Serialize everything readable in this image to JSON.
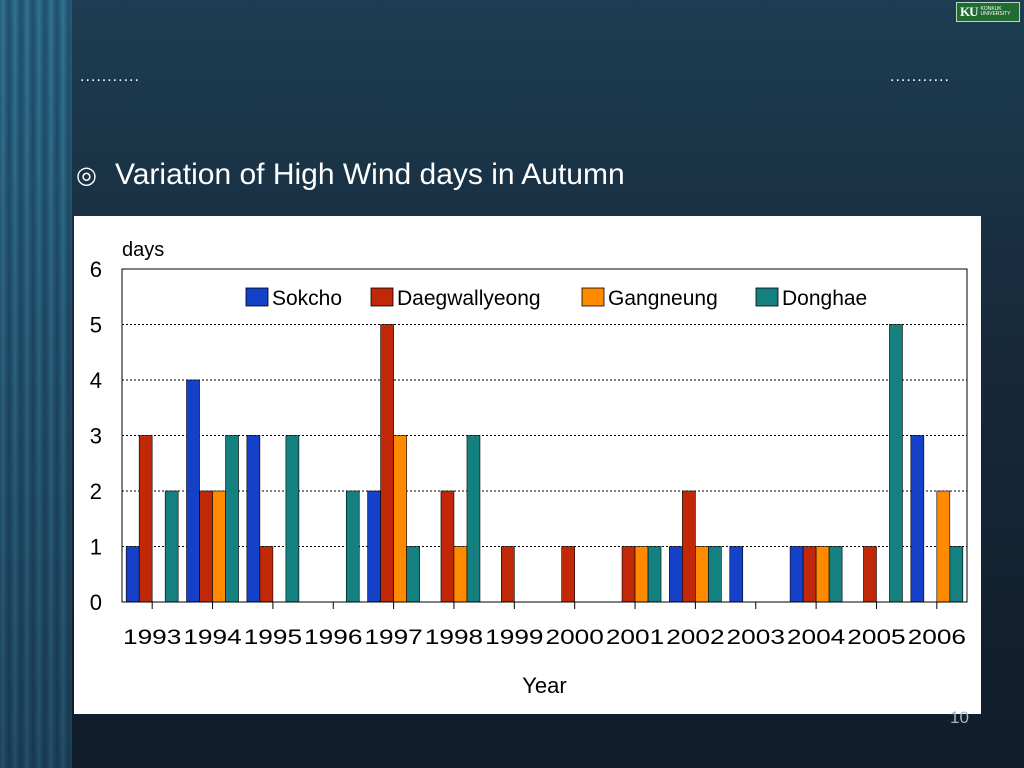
{
  "slide": {
    "left_dots": "...........",
    "right_dots": "...........",
    "bullet_symbol": "◎",
    "heading": "Variation of High Wind days in Autumn",
    "page_number": "10"
  },
  "logo": {
    "mark": "KU",
    "text_line1": "KONKUK",
    "text_line2": "UNIVERSITY",
    "color": "#1f6b32"
  },
  "chart_data": {
    "type": "bar",
    "title": "",
    "xlabel": "Year",
    "ylabel": "days",
    "ylim": [
      0,
      6
    ],
    "yticks": [
      0,
      1,
      2,
      3,
      4,
      5,
      6
    ],
    "grid": "horizontal dotted",
    "legend_position": "top",
    "categories": [
      "1993",
      "1994",
      "1995",
      "1996",
      "1997",
      "1998",
      "1999",
      "2000",
      "2001",
      "2002",
      "2003",
      "2004",
      "2005",
      "2006"
    ],
    "series": [
      {
        "name": "Sokcho",
        "color": "#1540c8",
        "values": [
          1,
          4,
          3,
          0,
          2,
          0,
          0,
          0,
          0,
          1,
          1,
          1,
          0,
          3
        ]
      },
      {
        "name": "Daegwallyeong",
        "color": "#c02808",
        "values": [
          3,
          2,
          1,
          0,
          5,
          2,
          1,
          1,
          1,
          2,
          0,
          1,
          1,
          0
        ]
      },
      {
        "name": "Gangneung",
        "color": "#ff8a00",
        "values": [
          0,
          2,
          0,
          0,
          3,
          1,
          0,
          0,
          1,
          1,
          0,
          1,
          0,
          2
        ]
      },
      {
        "name": "Donghae",
        "color": "#148080",
        "values": [
          2,
          3,
          3,
          2,
          1,
          3,
          0,
          0,
          1,
          1,
          0,
          1,
          5,
          1
        ]
      }
    ]
  }
}
